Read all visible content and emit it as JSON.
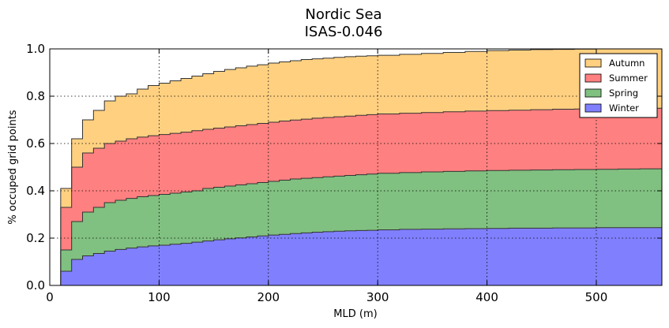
{
  "chart_data": {
    "type": "area",
    "title": "Nordic Sea",
    "subtitle": "ISAS-0.046",
    "xlabel": "MLD (m)",
    "ylabel": "% occuped grid points",
    "xlim": [
      0,
      560
    ],
    "ylim": [
      0,
      1.0
    ],
    "xticks": [
      0,
      100,
      200,
      300,
      400,
      500
    ],
    "yticks": [
      0.0,
      0.2,
      0.4,
      0.6,
      0.8,
      1.0
    ],
    "xtick_labels": [
      "0",
      "100",
      "200",
      "300",
      "400",
      "500"
    ],
    "ytick_labels": [
      "0.0",
      "0.2",
      "0.4",
      "0.6",
      "0.8",
      "1.0"
    ],
    "grid": true,
    "legend_position": "top-right",
    "stacked": true,
    "step": true,
    "x": [
      10,
      20,
      30,
      40,
      50,
      60,
      70,
      80,
      90,
      100,
      110,
      120,
      130,
      140,
      150,
      160,
      170,
      180,
      190,
      200,
      210,
      220,
      230,
      240,
      250,
      260,
      270,
      280,
      290,
      300,
      320,
      340,
      360,
      380,
      400,
      420,
      440,
      460,
      480,
      500,
      520,
      540,
      560
    ],
    "series": [
      {
        "name": "Winter",
        "color": "#8080ff",
        "values": [
          0.06,
          0.11,
          0.125,
          0.135,
          0.145,
          0.152,
          0.158,
          0.163,
          0.167,
          0.17,
          0.174,
          0.178,
          0.183,
          0.188,
          0.193,
          0.197,
          0.201,
          0.205,
          0.209,
          0.213,
          0.216,
          0.219,
          0.222,
          0.225,
          0.227,
          0.229,
          0.231,
          0.232,
          0.233,
          0.235,
          0.237,
          0.238,
          0.239,
          0.24,
          0.241,
          0.242,
          0.242,
          0.243,
          0.243,
          0.244,
          0.244,
          0.244,
          0.245
        ]
      },
      {
        "name": "Spring",
        "color": "#80c080",
        "values": [
          0.15,
          0.27,
          0.31,
          0.33,
          0.35,
          0.36,
          0.368,
          0.375,
          0.38,
          0.385,
          0.39,
          0.395,
          0.4,
          0.41,
          0.415,
          0.42,
          0.425,
          0.43,
          0.435,
          0.44,
          0.445,
          0.45,
          0.453,
          0.456,
          0.459,
          0.462,
          0.465,
          0.468,
          0.471,
          0.474,
          0.477,
          0.48,
          0.482,
          0.484,
          0.486,
          0.487,
          0.488,
          0.489,
          0.49,
          0.491,
          0.492,
          0.493,
          0.494
        ]
      },
      {
        "name": "Summer",
        "color": "#ff8080",
        "values": [
          0.33,
          0.5,
          0.56,
          0.58,
          0.6,
          0.61,
          0.62,
          0.627,
          0.633,
          0.638,
          0.643,
          0.648,
          0.654,
          0.66,
          0.665,
          0.67,
          0.675,
          0.68,
          0.685,
          0.69,
          0.695,
          0.699,
          0.703,
          0.707,
          0.71,
          0.713,
          0.716,
          0.719,
          0.722,
          0.725,
          0.728,
          0.731,
          0.734,
          0.737,
          0.739,
          0.741,
          0.743,
          0.745,
          0.746,
          0.747,
          0.748,
          0.749,
          0.75
        ]
      },
      {
        "name": "Autumn",
        "color": "#ffd080",
        "values": [
          0.41,
          0.62,
          0.7,
          0.74,
          0.78,
          0.8,
          0.81,
          0.83,
          0.845,
          0.855,
          0.865,
          0.875,
          0.885,
          0.895,
          0.905,
          0.913,
          0.92,
          0.927,
          0.933,
          0.94,
          0.945,
          0.95,
          0.955,
          0.958,
          0.961,
          0.964,
          0.967,
          0.969,
          0.971,
          0.973,
          0.977,
          0.981,
          0.985,
          0.989,
          0.993,
          0.995,
          0.997,
          0.998,
          0.999,
          1.0,
          1.0,
          1.0,
          1.0
        ]
      }
    ]
  }
}
